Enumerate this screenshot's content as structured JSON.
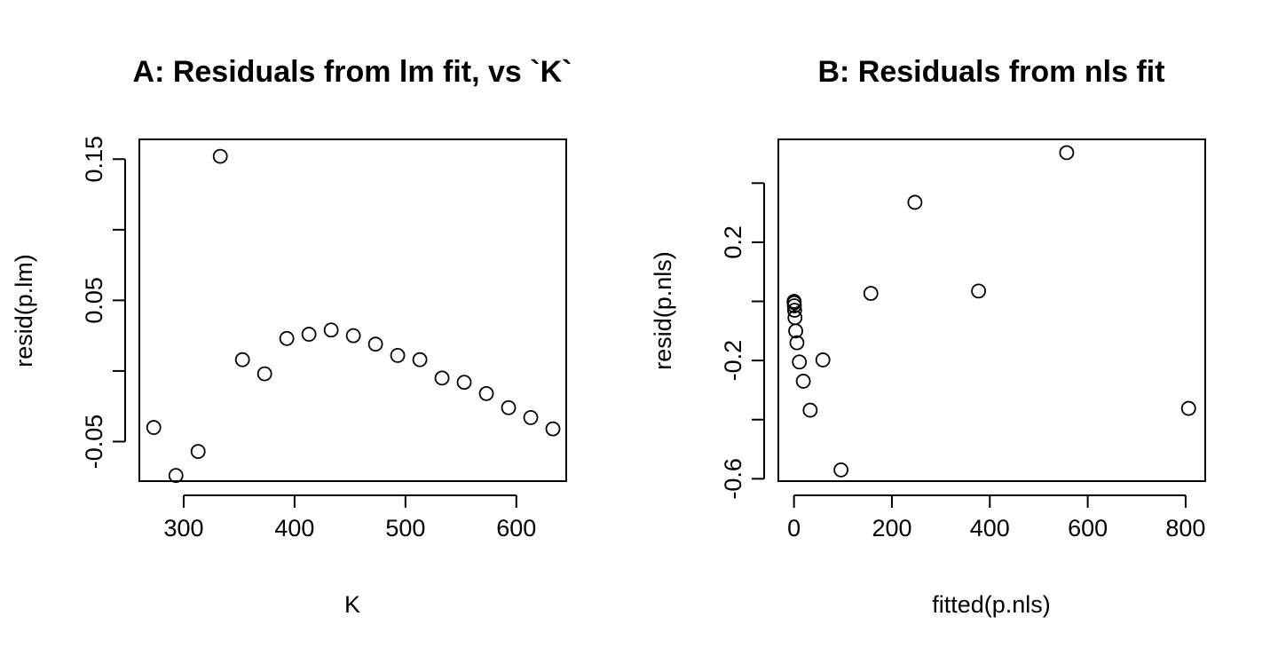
{
  "chart_data": [
    {
      "type": "scatter",
      "title": "A: Residuals from lm fit, vs `K`",
      "xlabel": "K",
      "ylabel": "resid(p.lm)",
      "xlim": [
        260,
        645
      ],
      "ylim": [
        -0.078,
        0.164
      ],
      "xticks": [
        {
          "value": 300,
          "label": "300"
        },
        {
          "value": 400,
          "label": "400"
        },
        {
          "value": 500,
          "label": "500"
        },
        {
          "value": 600,
          "label": "600"
        }
      ],
      "yticks": [
        {
          "value": -0.05,
          "label": "-0.05"
        },
        {
          "value": 0.0,
          "label": ""
        },
        {
          "value": 0.05,
          "label": "0.05"
        },
        {
          "value": 0.1,
          "label": ""
        },
        {
          "value": 0.15,
          "label": "0.15"
        }
      ],
      "grid": false,
      "points": [
        {
          "x": 273,
          "y": -0.04
        },
        {
          "x": 293,
          "y": -0.074
        },
        {
          "x": 313,
          "y": -0.057
        },
        {
          "x": 333,
          "y": 0.152
        },
        {
          "x": 353,
          "y": 0.008
        },
        {
          "x": 373,
          "y": -0.002
        },
        {
          "x": 393,
          "y": 0.023
        },
        {
          "x": 413,
          "y": 0.026
        },
        {
          "x": 433,
          "y": 0.029
        },
        {
          "x": 453,
          "y": 0.025
        },
        {
          "x": 473,
          "y": 0.019
        },
        {
          "x": 493,
          "y": 0.011
        },
        {
          "x": 513,
          "y": 0.008
        },
        {
          "x": 533,
          "y": -0.005
        },
        {
          "x": 553,
          "y": -0.008
        },
        {
          "x": 573,
          "y": -0.016
        },
        {
          "x": 593,
          "y": -0.026
        },
        {
          "x": 613,
          "y": -0.033
        },
        {
          "x": 633,
          "y": -0.041
        }
      ]
    },
    {
      "type": "scatter",
      "title": "B: Residuals from nls fit",
      "xlabel": "fitted(p.nls)",
      "ylabel": "resid(p.nls)",
      "xlim": [
        -32,
        840
      ],
      "ylim": [
        -0.608,
        0.548
      ],
      "xticks": [
        {
          "value": 0,
          "label": "0"
        },
        {
          "value": 200,
          "label": "200"
        },
        {
          "value": 400,
          "label": "400"
        },
        {
          "value": 600,
          "label": "600"
        },
        {
          "value": 800,
          "label": "800"
        }
      ],
      "yticks": [
        {
          "value": -0.6,
          "label": "-0.6"
        },
        {
          "value": -0.4,
          "label": ""
        },
        {
          "value": -0.2,
          "label": "-0.2"
        },
        {
          "value": 0.0,
          "label": ""
        },
        {
          "value": 0.2,
          "label": "0.2"
        },
        {
          "value": 0.4,
          "label": ""
        }
      ],
      "grid": false,
      "points": [
        {
          "x": 0.2,
          "y": 0.0
        },
        {
          "x": 0.4,
          "y": -0.005
        },
        {
          "x": 0.7,
          "y": -0.015
        },
        {
          "x": 1.2,
          "y": -0.03
        },
        {
          "x": 2.0,
          "y": -0.055
        },
        {
          "x": 3.5,
          "y": -0.1
        },
        {
          "x": 6,
          "y": -0.14
        },
        {
          "x": 11,
          "y": -0.205
        },
        {
          "x": 19,
          "y": -0.27
        },
        {
          "x": 33,
          "y": -0.368
        },
        {
          "x": 59,
          "y": -0.198
        },
        {
          "x": 96,
          "y": -0.57
        },
        {
          "x": 157,
          "y": 0.027
        },
        {
          "x": 247,
          "y": 0.335
        },
        {
          "x": 377,
          "y": 0.035
        },
        {
          "x": 557,
          "y": 0.503
        },
        {
          "x": 806,
          "y": -0.362
        }
      ]
    }
  ]
}
